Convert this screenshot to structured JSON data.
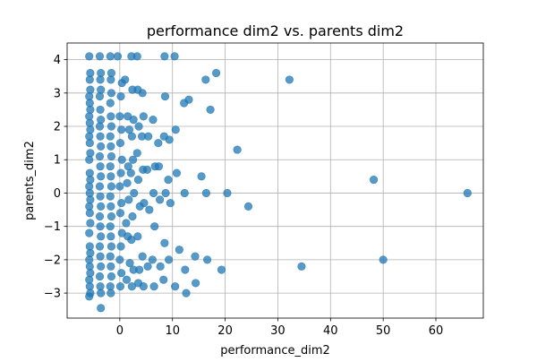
{
  "chart_data": {
    "type": "scatter",
    "title": "performance dim2 vs. parents dim2",
    "xlabel": "performance_dim2",
    "ylabel": "parents_dim2",
    "xlim": [
      -10,
      69
    ],
    "ylim": [
      -3.75,
      4.5
    ],
    "xticks": [
      0,
      10,
      20,
      30,
      40,
      50,
      60
    ],
    "yticks": [
      -3,
      -2,
      -1,
      0,
      1,
      2,
      3,
      4
    ],
    "grid": true,
    "marker_color": "#1f77b4",
    "marker_alpha": 0.75,
    "points": [
      {
        "x": -5.8,
        "y": 4.1
      },
      {
        "x": -5.6,
        "y": 3.6
      },
      {
        "x": -5.7,
        "y": 3.4
      },
      {
        "x": -5.6,
        "y": 3.1
      },
      {
        "x": -5.8,
        "y": 2.9
      },
      {
        "x": -5.7,
        "y": 2.7
      },
      {
        "x": -5.6,
        "y": 2.5
      },
      {
        "x": -5.8,
        "y": 2.3
      },
      {
        "x": -5.7,
        "y": 2.1
      },
      {
        "x": -5.6,
        "y": 1.9
      },
      {
        "x": -5.8,
        "y": 1.7
      },
      {
        "x": -5.7,
        "y": 1.5
      },
      {
        "x": -5.6,
        "y": 1.2
      },
      {
        "x": -5.8,
        "y": 1.0
      },
      {
        "x": -5.7,
        "y": 0.6
      },
      {
        "x": -5.6,
        "y": 0.4
      },
      {
        "x": -5.8,
        "y": 0.2
      },
      {
        "x": -5.7,
        "y": 0.0
      },
      {
        "x": -5.6,
        "y": -0.2
      },
      {
        "x": -5.8,
        "y": -0.4
      },
      {
        "x": -5.7,
        "y": -0.6
      },
      {
        "x": -5.6,
        "y": -0.9
      },
      {
        "x": -5.8,
        "y": -1.2
      },
      {
        "x": -5.7,
        "y": -1.6
      },
      {
        "x": -5.6,
        "y": -1.8
      },
      {
        "x": -5.8,
        "y": -2.0
      },
      {
        "x": -5.7,
        "y": -2.2
      },
      {
        "x": -5.6,
        "y": -2.4
      },
      {
        "x": -5.8,
        "y": -2.6
      },
      {
        "x": -5.7,
        "y": -2.8
      },
      {
        "x": -5.6,
        "y": -3.0
      },
      {
        "x": -5.8,
        "y": -3.1
      },
      {
        "x": -3.8,
        "y": 4.1
      },
      {
        "x": -3.6,
        "y": 3.6
      },
      {
        "x": -3.7,
        "y": 3.4
      },
      {
        "x": -3.6,
        "y": 3.1
      },
      {
        "x": -3.8,
        "y": 2.9
      },
      {
        "x": -3.7,
        "y": 2.5
      },
      {
        "x": -3.6,
        "y": 2.2
      },
      {
        "x": -3.8,
        "y": 2.0
      },
      {
        "x": -3.7,
        "y": 1.7
      },
      {
        "x": -3.6,
        "y": 1.4
      },
      {
        "x": -3.8,
        "y": 1.1
      },
      {
        "x": -3.7,
        "y": 0.8
      },
      {
        "x": -3.6,
        "y": 0.5
      },
      {
        "x": -3.8,
        "y": 0.2
      },
      {
        "x": -3.7,
        "y": -0.1
      },
      {
        "x": -3.6,
        "y": -0.4
      },
      {
        "x": -3.8,
        "y": -0.7
      },
      {
        "x": -3.7,
        "y": -1.0
      },
      {
        "x": -3.6,
        "y": -1.3
      },
      {
        "x": -3.8,
        "y": -1.6
      },
      {
        "x": -3.7,
        "y": -1.9
      },
      {
        "x": -3.6,
        "y": -2.2
      },
      {
        "x": -3.8,
        "y": -2.5
      },
      {
        "x": -3.7,
        "y": -2.8
      },
      {
        "x": -3.6,
        "y": -3.0
      },
      {
        "x": -3.6,
        "y": -3.45
      },
      {
        "x": -1.8,
        "y": 4.1
      },
      {
        "x": -1.6,
        "y": 3.6
      },
      {
        "x": -1.7,
        "y": 3.4
      },
      {
        "x": -1.6,
        "y": 3.0
      },
      {
        "x": -1.8,
        "y": 2.7
      },
      {
        "x": -1.7,
        "y": 2.3
      },
      {
        "x": -1.6,
        "y": 2.0
      },
      {
        "x": -1.8,
        "y": 1.7
      },
      {
        "x": -1.7,
        "y": 1.4
      },
      {
        "x": -1.6,
        "y": 1.1
      },
      {
        "x": -1.8,
        "y": 0.8
      },
      {
        "x": -1.7,
        "y": 0.5
      },
      {
        "x": -1.6,
        "y": 0.2
      },
      {
        "x": -1.8,
        "y": -0.1
      },
      {
        "x": -1.7,
        "y": -0.4
      },
      {
        "x": -1.6,
        "y": -0.7
      },
      {
        "x": -1.8,
        "y": -1.0
      },
      {
        "x": -1.7,
        "y": -1.3
      },
      {
        "x": -1.6,
        "y": -1.6
      },
      {
        "x": -1.8,
        "y": -1.9
      },
      {
        "x": -1.7,
        "y": -2.2
      },
      {
        "x": -1.6,
        "y": -2.5
      },
      {
        "x": -1.8,
        "y": -2.8
      },
      {
        "x": -1.7,
        "y": -3.0
      },
      {
        "x": -0.4,
        "y": 4.1
      },
      {
        "x": 0.4,
        "y": 3.3
      },
      {
        "x": 0.2,
        "y": 2.9
      },
      {
        "x": 0.0,
        "y": 2.3
      },
      {
        "x": 0.3,
        "y": 1.9
      },
      {
        "x": 0.1,
        "y": 1.5
      },
      {
        "x": 0.4,
        "y": 1.0
      },
      {
        "x": 0.2,
        "y": 0.6
      },
      {
        "x": 0.0,
        "y": 0.2
      },
      {
        "x": 0.3,
        "y": -0.3
      },
      {
        "x": 0.1,
        "y": -0.6
      },
      {
        "x": 0.4,
        "y": -1.2
      },
      {
        "x": 0.2,
        "y": -1.6
      },
      {
        "x": 0.0,
        "y": -2.0
      },
      {
        "x": 0.3,
        "y": -2.4
      },
      {
        "x": 0.1,
        "y": -2.8
      },
      {
        "x": 1.0,
        "y": 3.4
      },
      {
        "x": 1.5,
        "y": 2.3
      },
      {
        "x": 1.8,
        "y": 1.9
      },
      {
        "x": 1.6,
        "y": 0.8
      },
      {
        "x": 1.4,
        "y": 0.3
      },
      {
        "x": 1.7,
        "y": -0.2
      },
      {
        "x": 1.2,
        "y": -0.9
      },
      {
        "x": 1.5,
        "y": -1.3
      },
      {
        "x": 1.9,
        "y": -2.1
      },
      {
        "x": 1.3,
        "y": -2.6
      },
      {
        "x": 2.2,
        "y": 4.1
      },
      {
        "x": 2.4,
        "y": 3.1
      },
      {
        "x": 2.6,
        "y": 2.2
      },
      {
        "x": 2.3,
        "y": 1.7
      },
      {
        "x": 2.5,
        "y": 1.0
      },
      {
        "x": 2.1,
        "y": 0.6
      },
      {
        "x": 2.7,
        "y": 0.0
      },
      {
        "x": 2.4,
        "y": -0.7
      },
      {
        "x": 2.2,
        "y": -1.4
      },
      {
        "x": 2.6,
        "y": -2.3
      },
      {
        "x": 2.3,
        "y": -2.8
      },
      {
        "x": 3.3,
        "y": 4.1
      },
      {
        "x": 3.4,
        "y": 3.1
      },
      {
        "x": 3.6,
        "y": 2.0
      },
      {
        "x": 3.3,
        "y": 1.2
      },
      {
        "x": 3.5,
        "y": 0.4
      },
      {
        "x": 3.8,
        "y": -0.4
      },
      {
        "x": 3.4,
        "y": -1.3
      },
      {
        "x": 3.7,
        "y": -2.3
      },
      {
        "x": 3.5,
        "y": -2.7
      },
      {
        "x": 4.3,
        "y": 3.0
      },
      {
        "x": 4.5,
        "y": 2.3
      },
      {
        "x": 4.2,
        "y": 1.7
      },
      {
        "x": 4.4,
        "y": 0.7
      },
      {
        "x": 4.6,
        "y": -0.3
      },
      {
        "x": 4.3,
        "y": -1.9
      },
      {
        "x": 4.5,
        "y": -2.8
      },
      {
        "x": 5.4,
        "y": 1.7
      },
      {
        "x": 5.2,
        "y": 0.7
      },
      {
        "x": 5.6,
        "y": -0.5
      },
      {
        "x": 5.3,
        "y": -2.2
      },
      {
        "x": 6.3,
        "y": 2.2
      },
      {
        "x": 6.7,
        "y": 0.8
      },
      {
        "x": 6.4,
        "y": 0.0
      },
      {
        "x": 6.6,
        "y": -1.0
      },
      {
        "x": 6.2,
        "y": -2.0
      },
      {
        "x": 6.5,
        "y": -2.8
      },
      {
        "x": 7.3,
        "y": 1.5
      },
      {
        "x": 7.4,
        "y": 0.8
      },
      {
        "x": 7.6,
        "y": -0.2
      },
      {
        "x": 7.7,
        "y": -2.2
      },
      {
        "x": 8.5,
        "y": 4.1
      },
      {
        "x": 8.6,
        "y": 2.9
      },
      {
        "x": 8.4,
        "y": 1.7
      },
      {
        "x": 8.7,
        "y": 0.0
      },
      {
        "x": 8.5,
        "y": -1.5
      },
      {
        "x": 8.3,
        "y": -2.6
      },
      {
        "x": 9.4,
        "y": 1.6
      },
      {
        "x": 9.2,
        "y": 0.4
      },
      {
        "x": 9.6,
        "y": -0.3
      },
      {
        "x": 9.3,
        "y": -2.0
      },
      {
        "x": 10.4,
        "y": 4.1
      },
      {
        "x": 10.6,
        "y": 1.9
      },
      {
        "x": 10.8,
        "y": 0.6
      },
      {
        "x": 10.5,
        "y": -2.8
      },
      {
        "x": 11.3,
        "y": -1.7
      },
      {
        "x": 12.2,
        "y": 2.7
      },
      {
        "x": 12.3,
        "y": 0.0
      },
      {
        "x": 12.4,
        "y": -2.3
      },
      {
        "x": 12.6,
        "y": -3.0
      },
      {
        "x": 13.1,
        "y": 2.8
      },
      {
        "x": 14.3,
        "y": -1.9
      },
      {
        "x": 14.4,
        "y": -2.7
      },
      {
        "x": 15.5,
        "y": 0.5
      },
      {
        "x": 16.3,
        "y": 3.4
      },
      {
        "x": 16.4,
        "y": 0.0
      },
      {
        "x": 16.6,
        "y": -2.0
      },
      {
        "x": 17.2,
        "y": 2.5
      },
      {
        "x": 18.3,
        "y": 3.6
      },
      {
        "x": 19.3,
        "y": -2.3
      },
      {
        "x": 20.4,
        "y": 0.0
      },
      {
        "x": 22.3,
        "y": 1.3
      },
      {
        "x": 24.4,
        "y": -0.4
      },
      {
        "x": 32.2,
        "y": 3.4
      },
      {
        "x": 34.5,
        "y": -2.2
      },
      {
        "x": 48.2,
        "y": 0.4
      },
      {
        "x": 50.0,
        "y": -2.0
      },
      {
        "x": 66.0,
        "y": 0.0
      }
    ]
  }
}
